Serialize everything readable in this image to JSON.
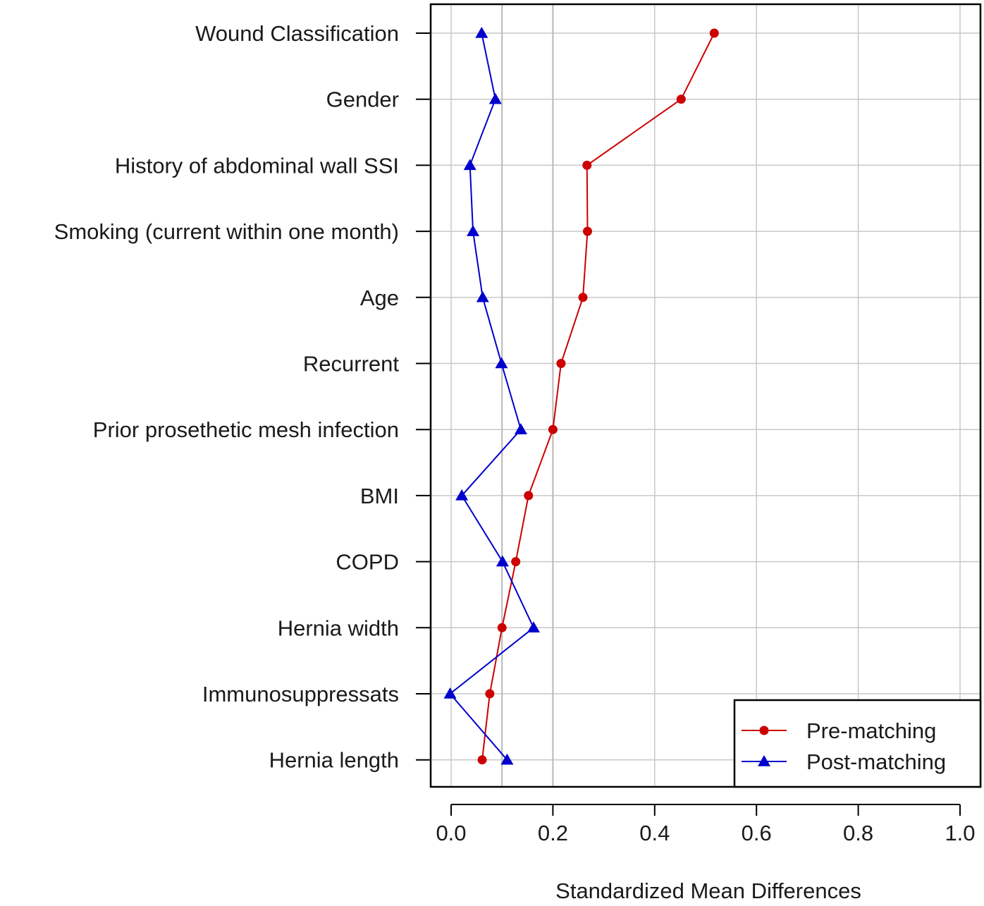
{
  "chart_data": {
    "type": "line",
    "title": "",
    "xlabel": "Standardized Mean Differences",
    "ylabel": "",
    "xlim": [
      -0.04,
      1.0
    ],
    "x_ticks": [
      0.0,
      0.2,
      0.4,
      0.6,
      0.8,
      1.0
    ],
    "x_tick_labels": [
      "0.0",
      "0.2",
      "0.4",
      "0.6",
      "0.8",
      "1.0"
    ],
    "vertical_reference_lines": [
      0.1,
      0.2
    ],
    "grid": true,
    "legend_position": "bottom-right",
    "categories": [
      "Wound Classification",
      "Gender",
      "History of abdominal wall SSI",
      "Smoking (current within one month)",
      "Age",
      "Recurrent",
      "Prior prosethetic mesh infection",
      "BMI",
      "COPD",
      "Hernia width",
      "Immunosuppressats",
      "Hernia length"
    ],
    "series": [
      {
        "name": "Pre-matching",
        "color": "#cc0000",
        "marker": "circle",
        "values": [
          0.517,
          0.452,
          0.267,
          0.268,
          0.259,
          0.216,
          0.2,
          0.152,
          0.127,
          0.1,
          0.076,
          0.061
        ]
      },
      {
        "name": "Post-matching",
        "color": "#0000cc",
        "marker": "triangle",
        "values": [
          0.06,
          0.087,
          0.037,
          0.043,
          0.062,
          0.099,
          0.137,
          0.021,
          0.101,
          0.162,
          -0.002,
          0.11
        ]
      }
    ]
  }
}
